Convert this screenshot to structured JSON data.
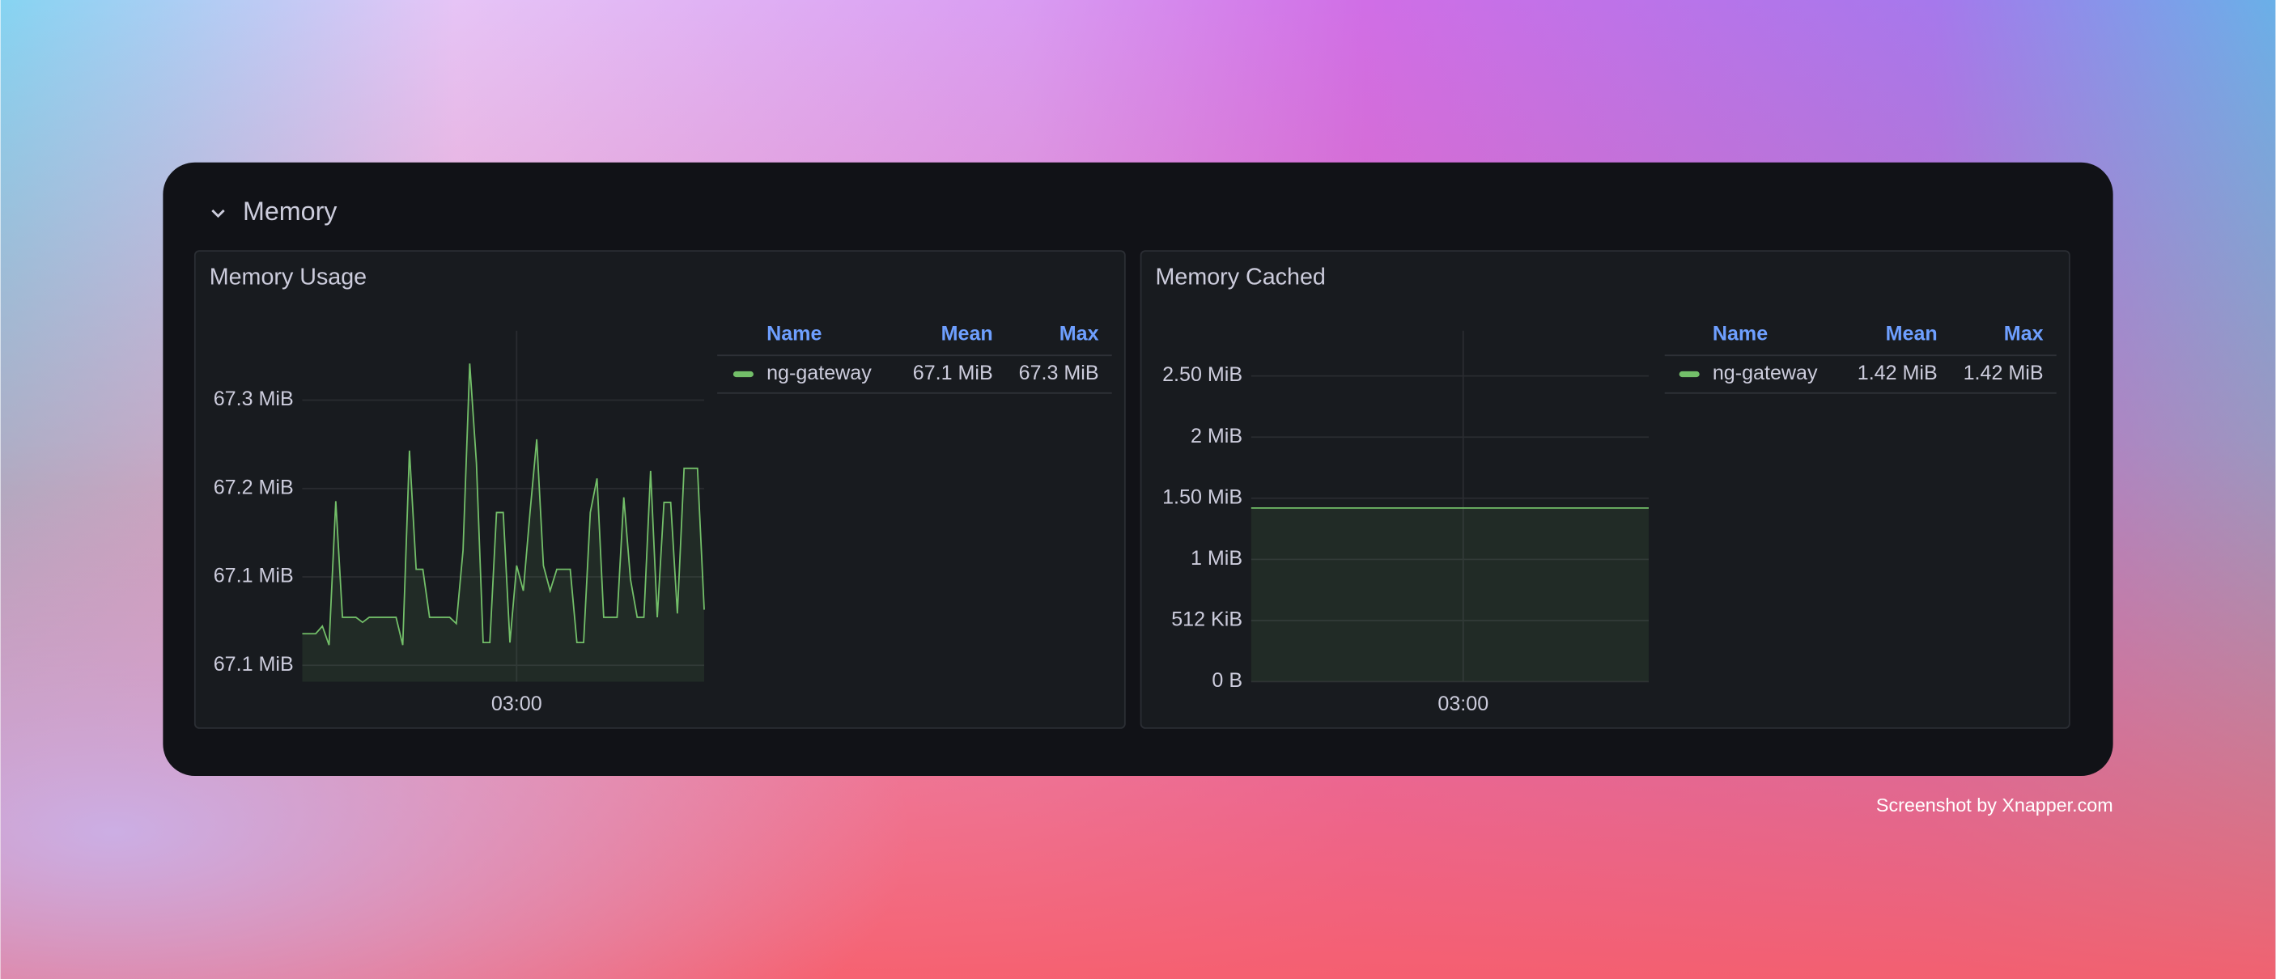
{
  "section_title": "Memory",
  "watermark": "Screenshot by Xnapper.com",
  "chart_data": [
    {
      "type": "line",
      "title": "Memory Usage",
      "x": [
        148,
        149,
        150,
        151,
        152,
        153,
        154,
        155,
        156,
        157,
        158,
        159,
        160,
        161,
        162,
        163,
        164,
        165,
        166,
        167,
        168,
        169,
        170,
        171,
        172,
        173,
        174,
        175,
        176,
        177,
        178,
        179,
        180,
        181,
        182,
        183,
        184,
        185,
        186,
        187,
        188,
        189,
        190,
        191,
        192,
        193,
        194,
        195,
        196,
        197,
        198,
        199,
        200,
        201,
        202,
        203,
        204,
        205,
        206,
        207,
        208
      ],
      "xlim": [
        148,
        208
      ],
      "xticks": [
        {
          "value": 180,
          "label": "03:00"
        }
      ],
      "ylim": [
        67.057,
        67.335
      ],
      "yticks": [
        {
          "value": 67.07,
          "label": "67.1 MiB"
        },
        {
          "value": 67.14,
          "label": "67.1 MiB"
        },
        {
          "value": 67.21,
          "label": "67.2 MiB"
        },
        {
          "value": 67.28,
          "label": "67.3 MiB"
        }
      ],
      "grid": true,
      "series": [
        {
          "name": "ng-gateway",
          "color": "#73bf69",
          "values": [
            67.095,
            67.095,
            67.095,
            67.101,
            67.086,
            67.2,
            67.108,
            67.108,
            67.108,
            67.104,
            67.108,
            67.108,
            67.108,
            67.108,
            67.108,
            67.086,
            67.24,
            67.146,
            67.146,
            67.108,
            67.108,
            67.108,
            67.108,
            67.103,
            67.161,
            67.309,
            67.23,
            67.088,
            67.088,
            67.191,
            67.191,
            67.088,
            67.149,
            67.129,
            67.191,
            67.249,
            67.149,
            67.129,
            67.146,
            67.146,
            67.146,
            67.088,
            67.088,
            67.191,
            67.218,
            67.108,
            67.108,
            67.108,
            67.203,
            67.138,
            67.108,
            67.108,
            67.224,
            67.108,
            67.199,
            67.199,
            67.111,
            67.226,
            67.226,
            67.226,
            67.114
          ]
        }
      ],
      "legend": {
        "columns": [
          "Name",
          "Mean",
          "Max"
        ],
        "values": [
          "67.1 MiB",
          "67.3 MiB"
        ]
      }
    },
    {
      "type": "line",
      "title": "Memory Cached",
      "x": [
        148,
        208
      ],
      "xlim": [
        148,
        208
      ],
      "xticks": [
        {
          "value": 180,
          "label": "03:00"
        }
      ],
      "ylim": [
        0,
        2.87
      ],
      "yticks": [
        {
          "value": 0,
          "label": "0 B"
        },
        {
          "value": 0.5,
          "label": "512 KiB"
        },
        {
          "value": 1,
          "label": "1 MiB"
        },
        {
          "value": 1.5,
          "label": "1.50 MiB"
        },
        {
          "value": 2,
          "label": "2 MiB"
        },
        {
          "value": 2.5,
          "label": "2.50 MiB"
        }
      ],
      "grid": true,
      "series": [
        {
          "name": "ng-gateway",
          "color": "#73bf69",
          "values": [
            1.42,
            1.42
          ]
        }
      ],
      "legend": {
        "columns": [
          "Name",
          "Mean",
          "Max"
        ],
        "values": [
          "1.42 MiB",
          "1.42 MiB"
        ]
      }
    }
  ]
}
